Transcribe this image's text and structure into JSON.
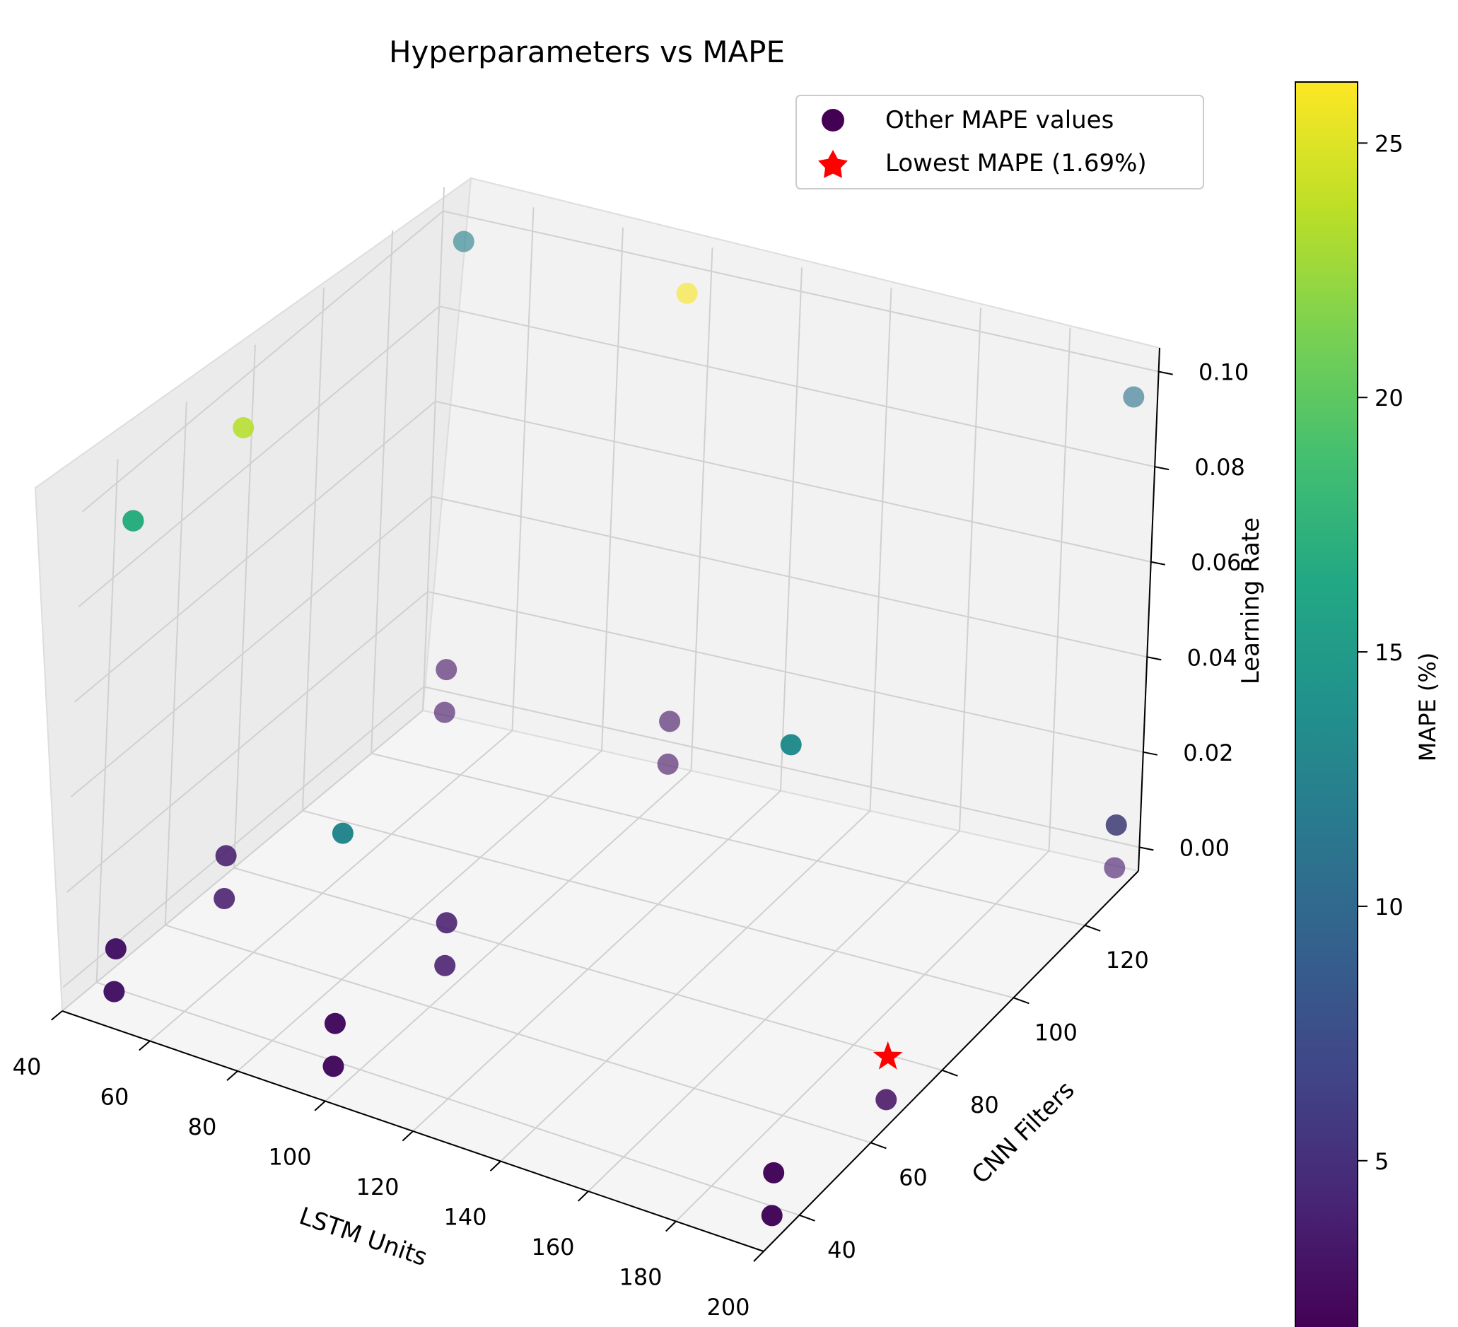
{
  "chart_data": {
    "type": "scatter3d",
    "title": "Hyperparameters vs MAPE",
    "xlabel": "LSTM Units",
    "ylabel": "CNN Filters",
    "zlabel": "Learning Rate",
    "colorbar_label": "MAPE (%)",
    "colormap": "viridis",
    "color_range": [
      1.69,
      26.2
    ],
    "xlim": [
      40,
      200
    ],
    "ylim": [
      30,
      135
    ],
    "zlim": [
      -0.005,
      0.105
    ],
    "x_ticks": [
      "40",
      "60",
      "80",
      "100",
      "120",
      "140",
      "160",
      "180",
      "200"
    ],
    "y_ticks": [
      "40",
      "60",
      "80",
      "100",
      "120"
    ],
    "z_ticks": [
      "0.00",
      "0.02",
      "0.04",
      "0.06",
      "0.08",
      "0.10"
    ],
    "colorbar_ticks": [
      "5",
      "10",
      "15",
      "20",
      "25"
    ],
    "legend": {
      "location": "upper right",
      "entries": [
        "Other MAPE values",
        "Lowest MAPE (1.69%)"
      ]
    },
    "points": [
      {
        "x": 50,
        "y": 128,
        "z": 0.1,
        "mape": 12.5
      },
      {
        "x": 100,
        "y": 128,
        "z": 0.1,
        "mape": 26.0
      },
      {
        "x": 200,
        "y": 128,
        "z": 0.1,
        "mape": 11.0
      },
      {
        "x": 50,
        "y": 32,
        "z": 0.1,
        "mape": 2.5
      },
      {
        "x": 50,
        "y": 64,
        "z": 0.1,
        "mape": 23.5
      },
      {
        "x": 50,
        "y": 32,
        "z": 0.1,
        "mape": 17.0
      },
      {
        "x": 100,
        "y": 32,
        "z": 0.05,
        "mape": 13.0
      },
      {
        "x": 200,
        "y": 32,
        "z": 0.1,
        "mape": 13.5
      },
      {
        "x": 200,
        "y": 128,
        "z": 0.01,
        "mape": 14.0
      },
      {
        "x": 50,
        "y": 128,
        "z": 0.01,
        "mape": 3.0
      },
      {
        "x": 50,
        "y": 128,
        "z": 0.001,
        "mape": 3.0
      },
      {
        "x": 100,
        "y": 128,
        "z": 0.01,
        "mape": 3.0
      },
      {
        "x": 100,
        "y": 128,
        "z": 0.001,
        "mape": 3.0
      },
      {
        "x": 200,
        "y": 128,
        "z": 0.01,
        "mape": 3.5
      },
      {
        "x": 200,
        "y": 128,
        "z": 0.001,
        "mape": 3.5
      },
      {
        "x": 50,
        "y": 64,
        "z": 0.01,
        "mape": 3.5
      },
      {
        "x": 50,
        "y": 64,
        "z": 0.001,
        "mape": 3.5
      },
      {
        "x": 100,
        "y": 64,
        "z": 0.01,
        "mape": 3.5
      },
      {
        "x": 100,
        "y": 64,
        "z": 0.001,
        "mape": 3.5
      },
      {
        "x": 50,
        "y": 32,
        "z": 0.01,
        "mape": 3.0
      },
      {
        "x": 50,
        "y": 32,
        "z": 0.001,
        "mape": 3.0
      },
      {
        "x": 100,
        "y": 32,
        "z": 0.01,
        "mape": 2.5
      },
      {
        "x": 100,
        "y": 32,
        "z": 0.001,
        "mape": 2.5
      },
      {
        "x": 200,
        "y": 64,
        "z": 0.001,
        "mape": 2.8
      },
      {
        "x": 200,
        "y": 32,
        "z": 0.01,
        "mape": 2.2
      },
      {
        "x": 200,
        "y": 32,
        "z": 0.001,
        "mape": 2.2
      }
    ],
    "best_point": {
      "x": 200,
      "y": 64,
      "z": 0.01,
      "mape": 1.69
    }
  }
}
